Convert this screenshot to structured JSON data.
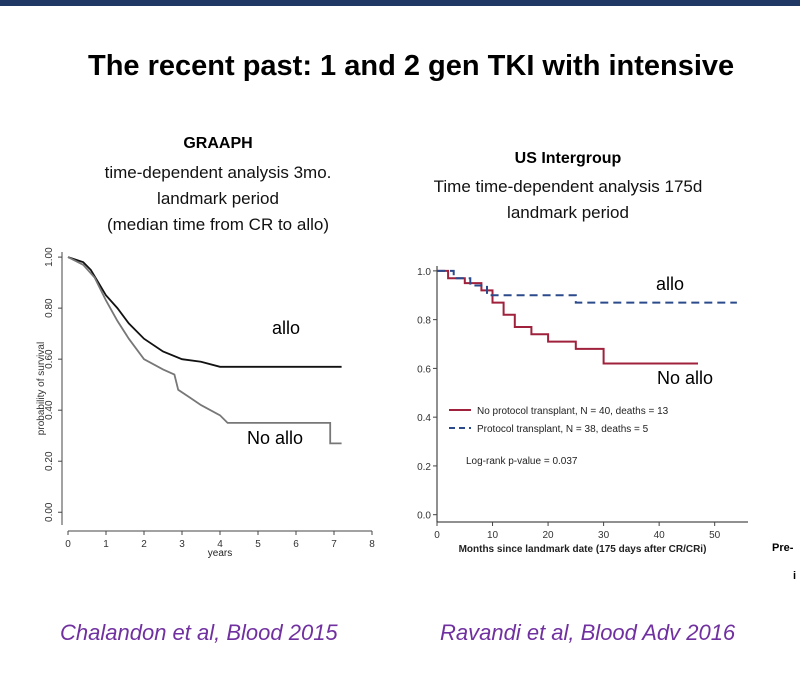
{
  "slide": {
    "title": "The recent past:   1 and 2 gen TKI with intensive",
    "citations": [
      "Chalandon et al, Blood 2015",
      "Ravandi  et al, Blood Adv 2016"
    ],
    "cut_text": [
      "Pre-",
      "i"
    ]
  },
  "chart_data": [
    {
      "type": "line",
      "title": "GRAAPH",
      "subtitle": [
        "time-dependent analysis 3mo.",
        "landmark period",
        "(median time from CR to allo)"
      ],
      "x_label": "years",
      "y_label": "probability of survival",
      "xlim": [
        0,
        8
      ],
      "ylim": [
        -0.05,
        1.02
      ],
      "xticks": [
        0,
        1,
        2,
        3,
        4,
        5,
        6,
        7,
        8
      ],
      "yticks": [
        {
          "value": 0,
          "label": "0.00"
        },
        {
          "value": 0.2,
          "label": "0.20"
        },
        {
          "value": 0.4,
          "label": "0.40"
        },
        {
          "value": 0.6,
          "label": "0.60"
        },
        {
          "value": 0.8,
          "label": "0.80"
        },
        {
          "value": 1,
          "label": "1.00"
        }
      ],
      "series": [
        {
          "name": "allo",
          "color": "#111111",
          "line_style": "solid",
          "x": [
            0,
            0.4,
            0.6,
            0.8,
            1,
            1.3,
            1.6,
            2,
            2.5,
            3,
            3.5,
            4,
            5,
            6,
            7.2
          ],
          "values": [
            1,
            0.98,
            0.95,
            0.9,
            0.85,
            0.8,
            0.74,
            0.68,
            0.63,
            0.6,
            0.59,
            0.57,
            0.57,
            0.57,
            0.57
          ]
        },
        {
          "name": "No allo",
          "color": "#777777",
          "line_style": "solid",
          "x": [
            0,
            0.4,
            0.7,
            1,
            1.3,
            1.6,
            2,
            2.5,
            2.8,
            2.9,
            3.2,
            3.5,
            4,
            4.2,
            5,
            6,
            6.9,
            6.9,
            7.2
          ],
          "values": [
            1,
            0.97,
            0.92,
            0.83,
            0.75,
            0.68,
            0.6,
            0.56,
            0.54,
            0.48,
            0.45,
            0.42,
            0.38,
            0.35,
            0.35,
            0.35,
            0.35,
            0.27,
            0.27
          ]
        }
      ]
    },
    {
      "type": "line",
      "title": "US Intergroup",
      "subtitle": [
        "Time time-dependent analysis 175d",
        "landmark period"
      ],
      "x_label": "Months since landmark date (175 days after CR/CRi)",
      "xlim": [
        0,
        56
      ],
      "ylim": [
        -0.03,
        1.02
      ],
      "xticks": [
        0,
        10,
        20,
        30,
        40,
        50
      ],
      "yticks": [
        {
          "value": 0,
          "label": "0.0"
        },
        {
          "value": 0.2,
          "label": "0.2"
        },
        {
          "value": 0.4,
          "label": "0.4"
        },
        {
          "value": 0.6,
          "label": "0.6"
        },
        {
          "value": 0.8,
          "label": "0.8"
        },
        {
          "value": 1,
          "label": "1.0"
        }
      ],
      "annotations": [
        "allo",
        "No allo",
        "Log-rank p-value = 0.037"
      ],
      "series": [
        {
          "name": "No protocol transplant, N = 40, deaths = 13",
          "color": "#a0213b",
          "line_style": "solid",
          "x": [
            0,
            2,
            2,
            5,
            5,
            8,
            8,
            10,
            10,
            12,
            12,
            14,
            14,
            17,
            17,
            20,
            20,
            25,
            25,
            30,
            30,
            47
          ],
          "values": [
            1,
            1,
            0.97,
            0.97,
            0.95,
            0.95,
            0.92,
            0.92,
            0.87,
            0.87,
            0.82,
            0.82,
            0.77,
            0.77,
            0.74,
            0.74,
            0.71,
            0.71,
            0.68,
            0.68,
            0.62,
            0.62
          ]
        },
        {
          "name": "Protocol transplant, N = 38, deaths = 5",
          "color": "#2b4a8b",
          "line_style": "dashed",
          "x": [
            0,
            3,
            3,
            6,
            6,
            9,
            9,
            25,
            25,
            54
          ],
          "values": [
            1,
            1,
            0.97,
            0.97,
            0.94,
            0.94,
            0.9,
            0.9,
            0.87,
            0.87
          ]
        }
      ]
    }
  ]
}
